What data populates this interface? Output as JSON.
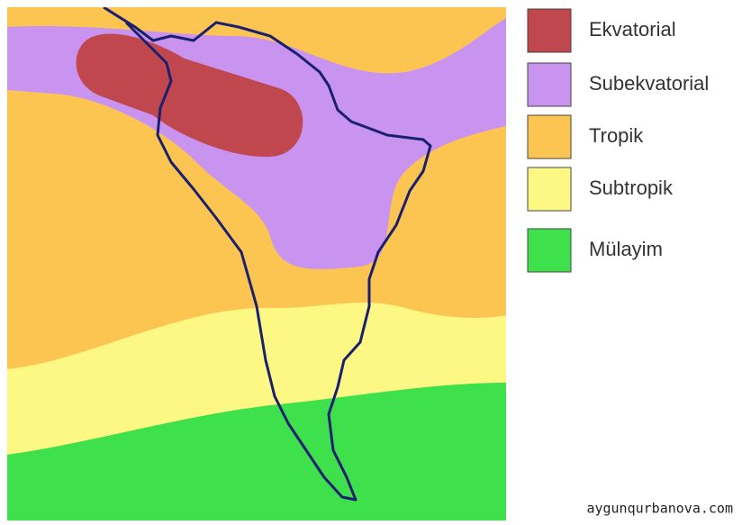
{
  "legend": [
    {
      "label": "Ekvatorial",
      "color": "#c1474f"
    },
    {
      "label": "Subekvatorial",
      "color": "#c994f0"
    },
    {
      "label": "Tropik",
      "color": "#fcc451"
    },
    {
      "label": "Subtropik",
      "color": "#fdf784"
    },
    {
      "label": "Mülayim",
      "color": "#3ee04c"
    }
  ],
  "watermark": "aygunqurbanova.com"
}
